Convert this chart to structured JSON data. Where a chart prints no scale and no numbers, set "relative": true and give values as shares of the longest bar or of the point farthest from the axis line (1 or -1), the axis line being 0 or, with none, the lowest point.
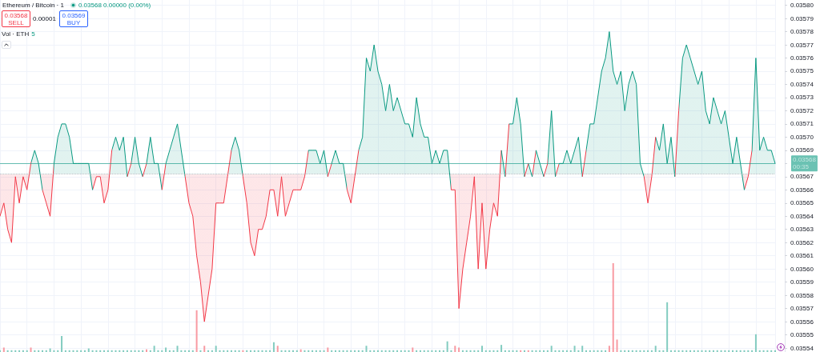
{
  "chart_data": [
    {
      "type": "area",
      "title": "Ethereum / Bitcoin · 1",
      "annotations": [
        "0.03568 0.00000 (0.00%)",
        "0.03568",
        "SELL",
        "0.00001",
        "0.03569",
        "BUY"
      ],
      "categories": [
        null,
        null,
        null,
        null,
        null,
        null,
        null,
        null,
        null,
        null,
        null,
        null,
        null,
        null,
        null,
        null,
        null,
        null,
        null,
        null,
        null,
        null,
        null,
        null,
        null,
        null,
        null,
        null,
        null,
        null,
        null,
        null,
        null,
        null,
        null,
        null,
        null,
        null,
        null,
        null,
        null,
        null,
        null,
        null,
        null,
        null,
        null,
        null,
        null,
        null,
        null,
        null,
        null,
        null,
        null,
        null,
        null,
        null,
        null,
        null,
        null,
        null,
        null,
        null,
        null,
        null,
        null,
        null,
        null,
        null,
        null,
        null,
        null,
        null,
        null,
        null,
        null,
        null,
        null,
        null,
        null,
        null,
        null,
        null,
        null,
        null,
        null,
        null,
        null,
        null,
        null,
        null,
        null,
        null,
        null,
        null,
        null,
        null,
        null,
        null,
        null,
        null,
        null,
        null,
        null,
        null,
        null,
        null,
        null,
        null,
        null,
        null,
        null,
        null,
        null,
        null,
        null,
        null,
        null,
        null,
        null,
        null,
        null,
        null,
        null,
        null,
        null,
        null,
        null,
        null,
        null,
        null,
        null,
        null,
        null,
        null,
        null,
        null,
        null,
        null,
        null,
        null,
        null,
        null,
        null,
        null,
        null,
        null,
        null,
        null,
        null,
        null,
        null,
        null,
        null,
        null,
        null,
        null,
        null,
        null,
        null,
        null,
        null,
        null,
        null,
        null,
        null,
        null,
        null,
        null,
        null,
        null,
        null,
        null,
        null,
        null,
        null,
        null,
        null,
        null,
        null,
        null,
        null,
        null,
        null,
        null,
        null,
        null,
        null,
        null,
        null,
        null,
        null,
        null,
        null,
        null,
        null,
        null,
        null,
        null,
        null,
        null
      ],
      "values": [
        0.03564,
        0.03565,
        0.03563,
        0.03562,
        0.03567,
        0.03565,
        0.03567,
        0.03566,
        0.03568,
        0.03569,
        0.03568,
        0.03566,
        0.03565,
        0.03564,
        0.03568,
        0.0357,
        0.03571,
        0.03571,
        0.0357,
        0.03568,
        0.03568,
        0.03568,
        0.03568,
        0.03568,
        0.03566,
        0.03567,
        0.03567,
        0.03565,
        0.03566,
        0.03569,
        0.0357,
        0.03569,
        0.0357,
        0.03567,
        0.03568,
        0.0357,
        0.03568,
        0.03567,
        0.03568,
        0.0357,
        0.03568,
        0.03568,
        0.03566,
        0.03568,
        0.03569,
        0.0357,
        0.03571,
        0.03569,
        0.03567,
        0.03565,
        0.03564,
        0.03561,
        0.03559,
        0.03556,
        0.03558,
        0.0356,
        0.03565,
        0.03565,
        0.03565,
        0.03567,
        0.03569,
        0.0357,
        0.03569,
        0.03567,
        0.03565,
        0.03562,
        0.03561,
        0.03563,
        0.03563,
        0.03564,
        0.03566,
        0.03566,
        0.03564,
        0.03567,
        0.03564,
        0.03565,
        0.03566,
        0.03566,
        0.03566,
        0.03567,
        0.03569,
        0.03569,
        0.03569,
        0.03568,
        0.03569,
        0.03567,
        0.03568,
        0.03569,
        0.03568,
        0.03568,
        0.03566,
        0.03565,
        0.03567,
        0.03569,
        0.0357,
        0.03576,
        0.03575,
        0.03577,
        0.03575,
        0.03574,
        0.03572,
        0.03574,
        0.03572,
        0.03573,
        0.03572,
        0.03571,
        0.03571,
        0.0357,
        0.03573,
        0.03571,
        0.0357,
        0.0357,
        0.03568,
        0.03569,
        0.03568,
        0.03569,
        0.03569,
        0.03566,
        0.03566,
        0.03557,
        0.0356,
        0.03562,
        0.03564,
        0.03567,
        0.0356,
        0.03565,
        0.0356,
        0.03563,
        0.03565,
        0.03564,
        0.03569,
        0.03567,
        0.03571,
        0.03571,
        0.03573,
        0.03571,
        0.03567,
        0.03568,
        0.03567,
        0.03569,
        0.03568,
        0.03567,
        0.03568,
        0.03572,
        0.03567,
        0.03568,
        0.03568,
        0.03569,
        0.03568,
        0.03569,
        0.0357,
        0.03567,
        0.03569,
        0.03571,
        0.03571,
        0.03573,
        0.03575,
        0.03576,
        0.03578,
        0.03575,
        0.03574,
        0.03575,
        0.03572,
        0.03574,
        0.03575,
        0.03574,
        0.03568,
        0.03567,
        0.03565,
        0.03567,
        0.0357,
        0.03569,
        0.03571,
        0.03568,
        0.0357,
        0.03567,
        0.03572,
        0.03576,
        0.03577,
        0.03576,
        0.03575,
        0.03574,
        0.03575,
        0.03572,
        0.03571,
        0.03573,
        0.03572,
        0.03571,
        0.03572,
        0.0357,
        0.03568,
        0.0357,
        0.03568,
        0.03566,
        0.03567,
        0.03569,
        0.03576,
        0.03569,
        0.0357,
        0.03569,
        0.03569,
        0.03568
      ],
      "colors": [
        "#f23645",
        "#f23645",
        "#f23645",
        "#f23645",
        "#f23645",
        "#f23645",
        "#f23645",
        "#f23645",
        "#089981",
        "#089981",
        "#089981",
        "#f23645",
        "#f23645",
        "#f23645",
        "#089981",
        "#089981",
        "#089981",
        "#089981",
        "#089981",
        "#089981",
        "#089981",
        "#089981",
        "#089981",
        "#089981",
        "#f23645",
        "#f23645",
        "#f23645",
        "#f23645",
        "#f23645",
        "#089981",
        "#089981",
        "#089981",
        "#089981",
        "#f23645",
        "#089981",
        "#089981",
        "#089981",
        "#f23645",
        "#089981",
        "#089981",
        "#089981",
        "#089981",
        "#f23645",
        "#089981",
        "#089981",
        "#089981",
        "#089981",
        "#089981",
        "#f23645",
        "#f23645",
        "#f23645",
        "#f23645",
        "#f23645",
        "#f23645",
        "#f23645",
        "#f23645",
        "#f23645",
        "#f23645",
        "#f23645",
        "#f23645",
        "#089981",
        "#089981",
        "#089981",
        "#f23645",
        "#f23645",
        "#f23645",
        "#f23645",
        "#f23645",
        "#f23645",
        "#f23645",
        "#f23645",
        "#f23645",
        "#f23645",
        "#f23645",
        "#f23645",
        "#f23645",
        "#f23645",
        "#f23645",
        "#f23645",
        "#f23645",
        "#089981",
        "#089981",
        "#089981",
        "#089981",
        "#089981",
        "#f23645",
        "#089981",
        "#089981",
        "#089981",
        "#089981",
        "#f23645",
        "#f23645",
        "#f23645",
        "#089981",
        "#089981",
        "#089981",
        "#089981",
        "#089981",
        "#089981",
        "#089981",
        "#089981",
        "#089981",
        "#089981",
        "#089981",
        "#089981",
        "#089981",
        "#089981",
        "#089981",
        "#089981",
        "#089981",
        "#089981",
        "#089981",
        "#089981",
        "#089981",
        "#089981",
        "#089981",
        "#089981",
        "#f23645",
        "#f23645",
        "#f23645",
        "#f23645",
        "#f23645",
        "#f23645",
        "#f23645",
        "#f23645",
        "#f23645",
        "#f23645",
        "#f23645",
        "#f23645",
        "#f23645",
        "#089981",
        "#f23645",
        "#089981",
        "#089981",
        "#089981",
        "#089981",
        "#f23645",
        "#089981",
        "#f23645",
        "#089981",
        "#089981",
        "#f23645",
        "#089981",
        "#089981",
        "#f23645",
        "#089981",
        "#089981",
        "#089981",
        "#089981",
        "#089981",
        "#089981",
        "#f23645",
        "#089981",
        "#089981",
        "#089981",
        "#089981",
        "#089981",
        "#089981",
        "#089981",
        "#089981",
        "#089981",
        "#089981",
        "#089981",
        "#089981",
        "#089981",
        "#089981",
        "#089981",
        "#f23645",
        "#f23645",
        "#f23645",
        "#089981",
        "#089981",
        "#089981",
        "#089981",
        "#089981",
        "#f23645",
        "#089981",
        "#089981",
        "#089981",
        "#089981",
        "#089981",
        "#089981",
        "#089981",
        "#089981",
        "#089981",
        "#089981",
        "#089981",
        "#089981",
        "#089981",
        "#089981",
        "#089981",
        "#089981",
        "#089981",
        "#f23645",
        "#f23645",
        "#089981",
        "#089981",
        "#089981",
        "#089981",
        "#089981",
        "#089981",
        "#089981"
      ],
      "ylim": [
        0.035537,
        0.035804
      ],
      "yticks": [
        0.03554,
        0.03555,
        0.03556,
        0.03557,
        0.03558,
        0.03559,
        {
          "value": 0.0356,
          "label": "0.03560"
        },
        0.03561,
        0.03562,
        0.03563,
        0.03564,
        0.03565,
        0.03566,
        0.03567,
        {
          "value": 0.03568,
          "label": null
        },
        0.03569,
        {
          "value": 0.0357,
          "label": "0.03570"
        },
        0.03571,
        0.03572,
        0.03573,
        0.03574,
        0.03575,
        0.03576,
        0.03577,
        0.03578,
        0.03579,
        {
          "value": 0.0358,
          "label": "0.03580"
        }
      ],
      "grid": true,
      "tick_labels": "y",
      "ref_lines": [
        {
          "axis": "y",
          "value": 0.035672,
          "color": "#9598a1",
          "line_style": "dotted"
        },
        {
          "axis": "y",
          "value": 0.03568,
          "color": "#089981",
          "label": "0.03568\n00:35"
        }
      ]
    },
    {
      "type": "bar",
      "relative": true,
      "title": "Vol · ETH",
      "annotations": [
        "5"
      ],
      "tick_labels": false,
      "categories": [
        null,
        null,
        null,
        null,
        null,
        null,
        null,
        null,
        null,
        null,
        null,
        null,
        null,
        null,
        null,
        null,
        null,
        null,
        null,
        null,
        null,
        null,
        null,
        null,
        null,
        null,
        null,
        null,
        null,
        null,
        null,
        null,
        null,
        null,
        null,
        null,
        null,
        null,
        null,
        null,
        null,
        null,
        null,
        null,
        null,
        null,
        null,
        null,
        null,
        null,
        null,
        null,
        null,
        null,
        null,
        null,
        null,
        null,
        null,
        null,
        null,
        null,
        null,
        null,
        null,
        null,
        null,
        null,
        null,
        null,
        null,
        null,
        null,
        null,
        null,
        null,
        null,
        null,
        null,
        null,
        null,
        null,
        null,
        null,
        null,
        null,
        null,
        null,
        null,
        null,
        null,
        null,
        null,
        null,
        null,
        null,
        null,
        null,
        null,
        null,
        null,
        null,
        null,
        null,
        null,
        null,
        null,
        null,
        null,
        null,
        null,
        null,
        null,
        null,
        null,
        null,
        null,
        null,
        null,
        null,
        null,
        null,
        null,
        null,
        null,
        null,
        null,
        null,
        null,
        null,
        null,
        null,
        null,
        null,
        null,
        null,
        null,
        null,
        null,
        null,
        null,
        null,
        null,
        null,
        null,
        null,
        null,
        null,
        null,
        null,
        null,
        null,
        null,
        null,
        null,
        null,
        null,
        null,
        null,
        null,
        null,
        null,
        null,
        null,
        null,
        null,
        null,
        null,
        null,
        null,
        null,
        null,
        null,
        null,
        null,
        null,
        null,
        null,
        null,
        null,
        null,
        null,
        null,
        null,
        null,
        null,
        null,
        null,
        null,
        null,
        null,
        null,
        null,
        null,
        null,
        null,
        null,
        null,
        null,
        null,
        null,
        null
      ],
      "values": [
        0.02,
        0.05,
        0.02,
        0.02,
        0.02,
        0.02,
        0.02,
        0.02,
        0.05,
        0.02,
        0.02,
        0.02,
        0.02,
        0.04,
        0.02,
        0.02,
        0.18,
        0.02,
        0.02,
        0.02,
        0.02,
        0.02,
        0.02,
        0.04,
        0.02,
        0.02,
        0.02,
        0.02,
        0.02,
        0.02,
        0.02,
        0.02,
        0.02,
        0.02,
        0.02,
        0.02,
        0.02,
        0.02,
        0.03,
        0.02,
        0.07,
        0.02,
        0.02,
        0.05,
        0.02,
        0.02,
        0.07,
        0.02,
        0.02,
        0.02,
        0.02,
        0.47,
        0.02,
        0.07,
        0.02,
        0.02,
        0.07,
        0.02,
        0.02,
        0.02,
        0.02,
        0.02,
        0.02,
        0.02,
        0.02,
        0.02,
        0.02,
        0.02,
        0.02,
        0.02,
        0.02,
        0.11,
        0.07,
        0.02,
        0.02,
        0.02,
        0.02,
        0.02,
        0.03,
        0.02,
        0.02,
        0.02,
        0.02,
        0.02,
        0.02,
        0.05,
        0.02,
        0.02,
        0.02,
        0.02,
        0.02,
        0.02,
        0.02,
        0.02,
        0.02,
        0.07,
        0.02,
        0.02,
        0.02,
        0.02,
        0.02,
        0.02,
        0.02,
        0.02,
        0.02,
        0.02,
        0.02,
        0.05,
        0.02,
        0.02,
        0.02,
        0.02,
        0.02,
        0.02,
        0.02,
        0.02,
        0.12,
        0.02,
        0.07,
        0.05,
        0.02,
        0.02,
        0.02,
        0.02,
        0.02,
        0.07,
        0.02,
        0.02,
        0.02,
        0.02,
        0.08,
        0.02,
        0.02,
        0.02,
        0.02,
        0.02,
        0.02,
        0.02,
        0.02,
        0.02,
        0.02,
        0.02,
        0.02,
        0.07,
        0.02,
        0.02,
        0.02,
        0.02,
        0.02,
        0.07,
        0.02,
        0.07,
        0.02,
        0.02,
        0.02,
        0.02,
        0.02,
        0.02,
        0.07,
        1,
        0.14,
        0.02,
        0.02,
        0.02,
        0.02,
        0.02,
        0.02,
        0.02,
        0.02,
        0.02,
        0.07,
        0.02,
        0.02,
        0.56,
        0.02,
        0.02,
        0.02,
        0.02,
        0.02,
        0.02,
        0.02,
        0.02,
        0.02,
        0.02,
        0.02,
        0.02,
        0.02,
        0.02,
        0.02,
        0.02,
        0.02,
        0.02,
        0.02,
        0.02,
        0.02,
        0.02,
        0.2,
        0.02,
        0.02,
        0.02,
        0.02,
        0.02
      ],
      "colors": [
        "#83ccc0",
        "#f89aa2",
        "#83ccc0",
        "#83ccc0",
        "#83ccc0",
        "#83ccc0",
        "#83ccc0",
        "#83ccc0",
        "#f89aa2",
        "#83ccc0",
        "#83ccc0",
        "#83ccc0",
        "#83ccc0",
        "#83ccc0",
        "#83ccc0",
        "#83ccc0",
        "#83ccc0",
        "#83ccc0",
        "#83ccc0",
        "#83ccc0",
        "#83ccc0",
        "#83ccc0",
        "#83ccc0",
        "#83ccc0",
        "#83ccc0",
        "#83ccc0",
        "#83ccc0",
        "#83ccc0",
        "#83ccc0",
        "#83ccc0",
        "#83ccc0",
        "#83ccc0",
        "#83ccc0",
        "#83ccc0",
        "#83ccc0",
        "#83ccc0",
        "#83ccc0",
        "#83ccc0",
        "#f89aa2",
        "#83ccc0",
        "#83ccc0",
        "#83ccc0",
        "#83ccc0",
        "#83ccc0",
        "#83ccc0",
        "#83ccc0",
        "#83ccc0",
        "#83ccc0",
        "#83ccc0",
        "#83ccc0",
        "#83ccc0",
        "#f89aa2",
        "#83ccc0",
        "#f89aa2",
        "#83ccc0",
        "#83ccc0",
        "#83ccc0",
        "#83ccc0",
        "#83ccc0",
        "#83ccc0",
        "#83ccc0",
        "#83ccc0",
        "#83ccc0",
        "#f89aa2",
        "#83ccc0",
        "#83ccc0",
        "#83ccc0",
        "#83ccc0",
        "#83ccc0",
        "#83ccc0",
        "#83ccc0",
        "#83ccc0",
        "#f89aa2",
        "#83ccc0",
        "#83ccc0",
        "#83ccc0",
        "#83ccc0",
        "#83ccc0",
        "#f89aa2",
        "#83ccc0",
        "#83ccc0",
        "#83ccc0",
        "#83ccc0",
        "#83ccc0",
        "#83ccc0",
        "#f89aa2",
        "#83ccc0",
        "#83ccc0",
        "#83ccc0",
        "#83ccc0",
        "#83ccc0",
        "#83ccc0",
        "#83ccc0",
        "#83ccc0",
        "#83ccc0",
        "#83ccc0",
        "#83ccc0",
        "#83ccc0",
        "#83ccc0",
        "#83ccc0",
        "#83ccc0",
        "#83ccc0",
        "#83ccc0",
        "#83ccc0",
        "#83ccc0",
        "#83ccc0",
        "#83ccc0",
        "#f89aa2",
        "#83ccc0",
        "#83ccc0",
        "#83ccc0",
        "#83ccc0",
        "#83ccc0",
        "#83ccc0",
        "#83ccc0",
        "#83ccc0",
        "#83ccc0",
        "#83ccc0",
        "#f89aa2",
        "#f89aa2",
        "#83ccc0",
        "#83ccc0",
        "#83ccc0",
        "#83ccc0",
        "#83ccc0",
        "#83ccc0",
        "#83ccc0",
        "#83ccc0",
        "#83ccc0",
        "#83ccc0",
        "#83ccc0",
        "#83ccc0",
        "#83ccc0",
        "#83ccc0",
        "#83ccc0",
        "#f89aa2",
        "#83ccc0",
        "#f89aa2",
        "#83ccc0",
        "#83ccc0",
        "#83ccc0",
        "#83ccc0",
        "#83ccc0",
        "#83ccc0",
        "#83ccc0",
        "#83ccc0",
        "#83ccc0",
        "#83ccc0",
        "#83ccc0",
        "#83ccc0",
        "#83ccc0",
        "#83ccc0",
        "#83ccc0",
        "#83ccc0",
        "#83ccc0",
        "#83ccc0",
        "#83ccc0",
        "#83ccc0",
        "#f89aa2",
        "#f89aa2",
        "#f89aa2",
        "#83ccc0",
        "#83ccc0",
        "#83ccc0",
        "#83ccc0",
        "#83ccc0",
        "#83ccc0",
        "#83ccc0",
        "#83ccc0",
        "#83ccc0",
        "#83ccc0",
        "#83ccc0",
        "#83ccc0",
        "#83ccc0",
        "#83ccc0",
        "#83ccc0",
        "#83ccc0",
        "#83ccc0",
        "#83ccc0",
        "#83ccc0",
        "#83ccc0",
        "#83ccc0",
        "#83ccc0",
        "#83ccc0",
        "#83ccc0",
        "#83ccc0",
        "#83ccc0",
        "#83ccc0",
        "#83ccc0",
        "#83ccc0",
        "#83ccc0",
        "#83ccc0",
        "#83ccc0",
        "#83ccc0",
        "#83ccc0",
        "#83ccc0",
        "#83ccc0",
        "#83ccc0",
        "#83ccc0",
        "#83ccc0",
        "#83ccc0",
        "#83ccc0"
      ]
    }
  ]
}
